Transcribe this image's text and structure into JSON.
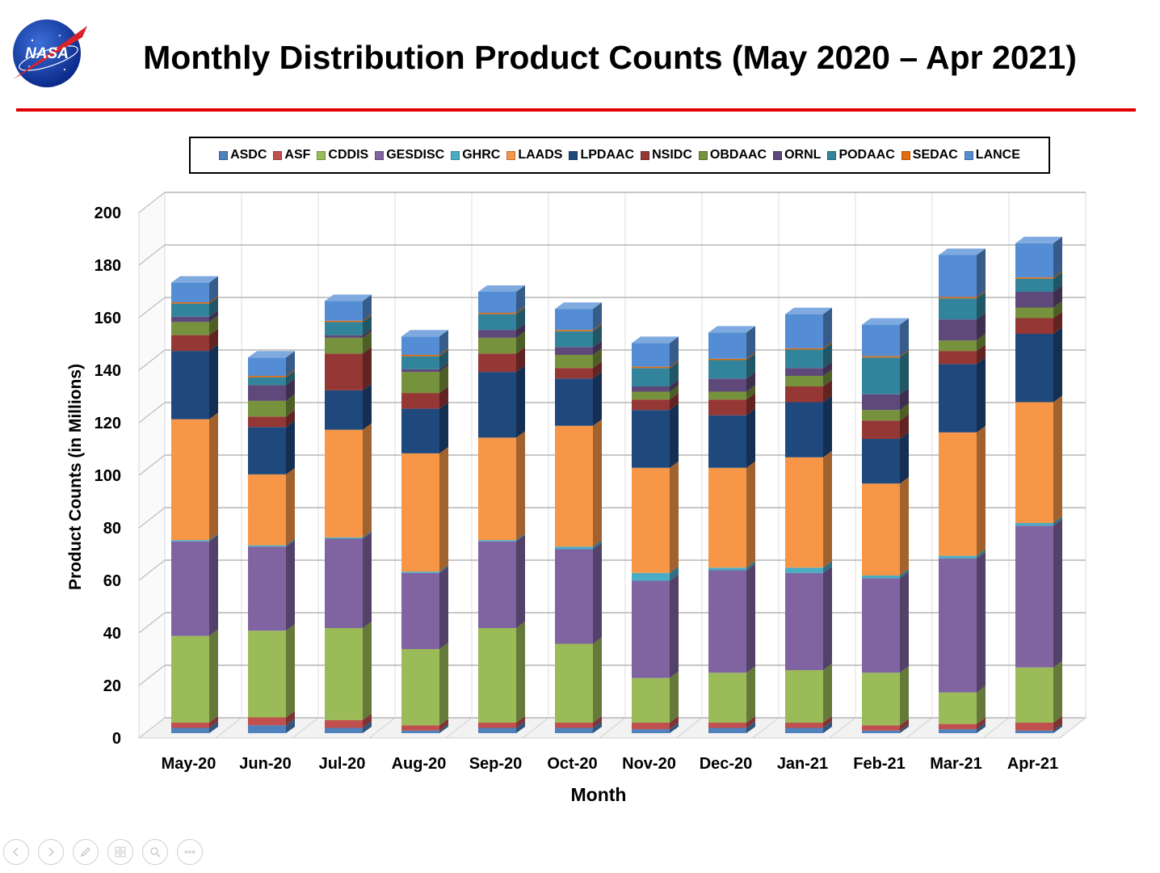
{
  "slide": {
    "title": "Monthly Distribution Product Counts (May 2020 – Apr 2021)",
    "logo_text": "NASA",
    "accent_color": "#e00000"
  },
  "nav_controls": [
    {
      "name": "previous-slide-button",
      "icon": "chevron-left-icon"
    },
    {
      "name": "next-slide-button",
      "icon": "chevron-right-icon"
    },
    {
      "name": "pen-tool-button",
      "icon": "pen-icon"
    },
    {
      "name": "see-all-slides-button",
      "icon": "grid-icon"
    },
    {
      "name": "zoom-button",
      "icon": "magnifier-icon"
    },
    {
      "name": "more-options-button",
      "icon": "ellipsis-icon"
    }
  ],
  "chart_data": {
    "type": "bar",
    "stacked": true,
    "title": "",
    "xlabel": "Month",
    "ylabel": "Product Counts (in Millions)",
    "ylim": [
      0,
      200
    ],
    "yticks": [
      0,
      20,
      40,
      60,
      80,
      100,
      120,
      140,
      160,
      180,
      200
    ],
    "grid": true,
    "legend_position": "top",
    "categories": [
      "May-20",
      "Jun-20",
      "Jul-20",
      "Aug-20",
      "Sep-20",
      "Oct-20",
      "Nov-20",
      "Dec-20",
      "Jan-21",
      "Feb-21",
      "Mar-21",
      "Apr-21"
    ],
    "series": [
      {
        "name": "ASDC",
        "color": "#4f81bd",
        "values": [
          2,
          3,
          2,
          1,
          2,
          2,
          1.5,
          2,
          2,
          1,
          1.5,
          1
        ]
      },
      {
        "name": "ASF",
        "color": "#c0504d",
        "values": [
          2,
          3,
          3,
          2,
          2,
          2,
          2.5,
          2,
          2,
          2,
          2,
          3
        ]
      },
      {
        "name": "CDDIS",
        "color": "#9bbb59",
        "values": [
          33,
          33,
          35,
          29,
          36,
          30,
          17,
          19,
          20,
          20,
          12,
          21
        ]
      },
      {
        "name": "GESDISC",
        "color": "#8064a2",
        "values": [
          36,
          32,
          34,
          29,
          33,
          36,
          37,
          39,
          37,
          36,
          51,
          54
        ]
      },
      {
        "name": "GHRC",
        "color": "#4bacc6",
        "values": [
          0.5,
          0.5,
          0.5,
          0.5,
          0.5,
          1,
          3,
          1,
          2,
          1,
          1,
          1
        ]
      },
      {
        "name": "LAADS",
        "color": "#f79646",
        "values": [
          46,
          27,
          41,
          45,
          39,
          46,
          40,
          38,
          42,
          35,
          47,
          46
        ]
      },
      {
        "name": "LPDAAC",
        "color": "#1f497d",
        "values": [
          26,
          18,
          15,
          17,
          25,
          18,
          22,
          20,
          21,
          17,
          26,
          26
        ]
      },
      {
        "name": "NSIDC",
        "color": "#953735",
        "values": [
          6,
          4,
          14,
          6,
          7,
          4,
          4,
          6,
          6,
          7,
          5,
          6
        ]
      },
      {
        "name": "OBDAAC",
        "color": "#76923c",
        "values": [
          5,
          6,
          6,
          8,
          6,
          5,
          3,
          3,
          4,
          4,
          4,
          4
        ]
      },
      {
        "name": "ORNL",
        "color": "#5f497a",
        "values": [
          2,
          6,
          1,
          1,
          3,
          3,
          2,
          5,
          3,
          6,
          8,
          6
        ]
      },
      {
        "name": "PODAAC",
        "color": "#31849b",
        "values": [
          5,
          3,
          5,
          5,
          6,
          6,
          7,
          7,
          7,
          14,
          8,
          5
        ]
      },
      {
        "name": "SEDAC",
        "color": "#e46c0a",
        "values": [
          0.5,
          0.5,
          0.5,
          0.5,
          0.5,
          0.5,
          0.5,
          0.5,
          0.5,
          0.5,
          0.5,
          0.5
        ]
      },
      {
        "name": "LANCE",
        "color": "#548dd4",
        "values": [
          7.5,
          7,
          7.5,
          7,
          8,
          8,
          9,
          10,
          13,
          12,
          16,
          13
        ]
      }
    ]
  }
}
